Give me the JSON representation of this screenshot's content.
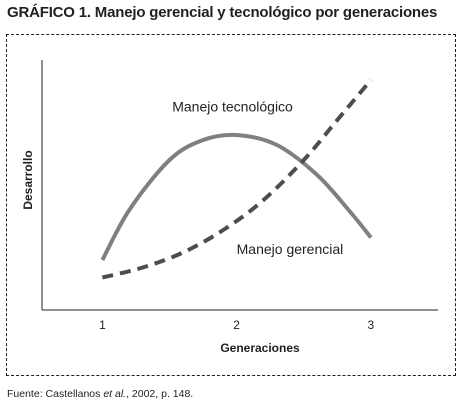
{
  "figure": {
    "title": "GRÁFICO 1. Manejo gerencial y tecnológico por generaciones"
  },
  "source": {
    "prefix": "Fuente: Castellanos ",
    "italic": "et al.",
    "suffix": ", 2002, p. 148."
  },
  "chart_data": {
    "type": "line",
    "title": "GRÁFICO 1. Manejo gerencial y tecnológico por generaciones",
    "xlabel": "Generaciones",
    "ylabel": "Desarrollo",
    "x_ticks": [
      "1",
      "2",
      "3"
    ],
    "xlim": [
      0.55,
      3.5
    ],
    "ylim": [
      0,
      10
    ],
    "grid": false,
    "y_tick_labels": false,
    "series": [
      {
        "name": "Manejo tecnológico",
        "style": "solid",
        "color": "#808080",
        "x": [
          1.0,
          1.2,
          1.5,
          1.75,
          2.0,
          2.3,
          2.6,
          2.85,
          3.0
        ],
        "y": [
          2.0,
          4.0,
          6.0,
          6.8,
          7.0,
          6.6,
          5.4,
          3.9,
          2.9
        ]
      },
      {
        "name": "Manejo gerencial",
        "style": "dashed",
        "color": "#4d4d4d",
        "x": [
          1.0,
          1.3,
          1.6,
          1.9,
          2.2,
          2.5,
          2.75,
          3.0
        ],
        "y": [
          1.3,
          1.7,
          2.3,
          3.2,
          4.4,
          6.0,
          7.6,
          9.2
        ]
      }
    ],
    "annotations": [
      {
        "text": "Manejo tecnológico",
        "series": "Manejo tecnológico"
      },
      {
        "text": "Manejo gerencial",
        "series": "Manejo gerencial"
      }
    ]
  }
}
